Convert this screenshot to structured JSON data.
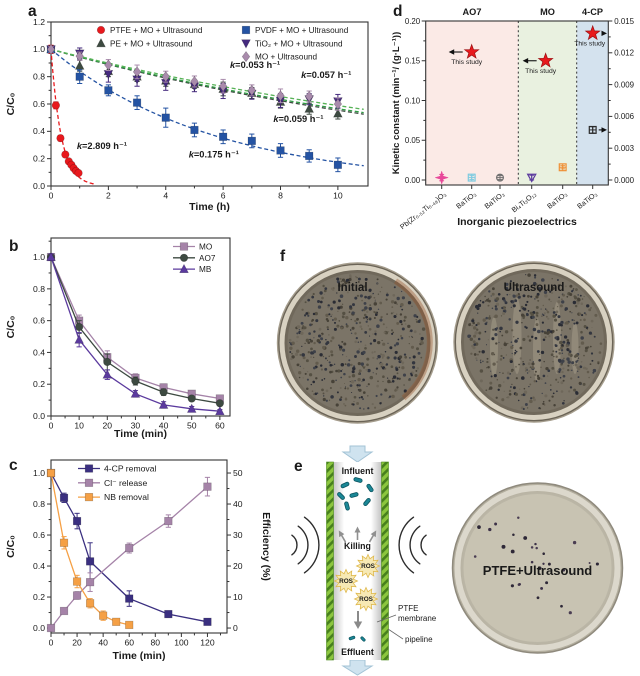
{
  "figure": {
    "background": "#ffffff",
    "panel_labels": {
      "a": "a",
      "b": "b",
      "c": "c",
      "d": "d",
      "e": "e",
      "f": "f"
    }
  },
  "chart_data": [
    {
      "id": "a",
      "type": "line",
      "xlabel": "Time (h)",
      "ylabel": "C/C₀",
      "xlim": [
        0,
        11.05
      ],
      "ylim": [
        0,
        1.2
      ],
      "xticks": {
        "values": [
          0,
          2,
          4,
          6,
          8,
          10
        ],
        "labels": [
          "0",
          "2",
          "4",
          "6",
          "8",
          "10"
        ]
      },
      "xminor": [
        1,
        3,
        5,
        7,
        9
      ],
      "yticks": {
        "values": [
          0,
          0.2,
          0.4,
          0.6,
          0.8,
          1.0,
          1.2
        ],
        "labels": [
          "0.0",
          "0.2",
          "0.4",
          "0.6",
          "0.8",
          "1.0",
          "1.2"
        ]
      },
      "yminor": [
        0.1,
        0.3,
        0.5,
        0.7,
        0.9,
        1.1
      ],
      "legend_position": "top-inside",
      "series": [
        {
          "name": "PTFE + MO + Ultrasound",
          "marker": "circle",
          "color": "#e8191d",
          "line": "dashed-fit",
          "fit_k": 2.809,
          "fit_range": [
            0,
            1.5
          ],
          "x": [
            0,
            0.17,
            0.33,
            0.5,
            0.62,
            0.71,
            0.79,
            0.87,
            0.96
          ],
          "y": [
            1.0,
            0.59,
            0.35,
            0.23,
            0.18,
            0.155,
            0.13,
            0.11,
            0.095
          ],
          "yerr": [
            0.03,
            0.025,
            0.02,
            0.018,
            0.015,
            0.012,
            0.012,
            0.01,
            0.01
          ]
        },
        {
          "name": "PE + MO + Ultrasound",
          "marker": "triangle-up",
          "color": "#3d4a41",
          "line": "dashed-fit",
          "line_color": "#3d4a41",
          "fit_k": 0.059,
          "fit_range": [
            0,
            10.9
          ],
          "x": [
            0,
            1,
            2,
            3,
            4,
            5,
            6,
            7,
            8,
            9,
            10
          ],
          "y": [
            1.0,
            0.88,
            0.84,
            0.8,
            0.77,
            0.745,
            0.71,
            0.68,
            0.615,
            0.565,
            0.53
          ],
          "yerr": [
            0.02,
            0.04,
            0.04,
            0.035,
            0.04,
            0.03,
            0.05,
            0.04,
            0.045,
            0.04,
            0.04
          ]
        },
        {
          "name": "PVDF + MO + Ultrasound",
          "marker": "square",
          "color": "#2453a3",
          "line": "dashed-fit",
          "fit_k": 0.175,
          "fit_range": [
            0,
            10.9
          ],
          "x": [
            0,
            1,
            2,
            3,
            4,
            5,
            6,
            7,
            8,
            9,
            10
          ],
          "y": [
            1.0,
            0.8,
            0.7,
            0.61,
            0.5,
            0.41,
            0.36,
            0.33,
            0.26,
            0.22,
            0.155
          ],
          "yerr": [
            0.02,
            0.05,
            0.04,
            0.05,
            0.07,
            0.05,
            0.05,
            0.05,
            0.05,
            0.045,
            0.05
          ]
        },
        {
          "name": "TiO₂ + MO + Ultrasound",
          "marker": "triangle-down",
          "color": "#452a7e",
          "line": "dashed-fit",
          "line_color": "#2f9e44",
          "fit_k": 0.057,
          "fit_range": [
            0,
            10.9
          ],
          "x": [
            0,
            1,
            2,
            3,
            4,
            5,
            6,
            7,
            8,
            9,
            10
          ],
          "y": [
            1.0,
            0.97,
            0.82,
            0.78,
            0.755,
            0.73,
            0.695,
            0.675,
            0.625,
            0.635,
            0.62
          ],
          "yerr": [
            0.02,
            0.04,
            0.06,
            0.05,
            0.055,
            0.04,
            0.055,
            0.04,
            0.05,
            0.04,
            0.05
          ]
        },
        {
          "name": "MO + Ultrasound",
          "marker": "diamond",
          "color": "#a98bac",
          "line": "dashed-fit",
          "line_color": "#57b257",
          "fit_k": 0.053,
          "fit_range": [
            0,
            10.9
          ],
          "x": [
            0,
            1,
            2,
            3,
            4,
            5,
            6,
            7,
            8,
            9,
            10
          ],
          "y": [
            1.0,
            0.95,
            0.885,
            0.835,
            0.8,
            0.765,
            0.73,
            0.7,
            0.66,
            0.655,
            0.6
          ],
          "yerr": [
            0.02,
            0.03,
            0.04,
            0.05,
            0.04,
            0.04,
            0.05,
            0.04,
            0.05,
            0.04,
            0.045
          ]
        }
      ],
      "annotations": [
        {
          "text": "k=2.809 h⁻¹",
          "x": 0.9,
          "y": 0.27,
          "color": "#e8191d"
        },
        {
          "text": "k=0.175 h⁻¹",
          "x": 4.8,
          "y": 0.21,
          "color": "#2453a3"
        },
        {
          "text": "k=0.053 h⁻¹",
          "x": 6.24,
          "y": 0.863,
          "color": "#b79ab8"
        },
        {
          "text": "k=0.057 h⁻¹",
          "x": 8.72,
          "y": 0.79,
          "color": "#452a7e"
        },
        {
          "text": "k=0.059 h⁻¹",
          "x": 7.75,
          "y": 0.47,
          "color": "#3d4a41"
        }
      ]
    },
    {
      "id": "b",
      "type": "line",
      "xlabel": "Time (min)",
      "ylabel": "C/C₀",
      "xlim": [
        0,
        63.6
      ],
      "ylim": [
        0,
        1.12
      ],
      "xticks": {
        "values": [
          0,
          10,
          20,
          30,
          40,
          50,
          60
        ],
        "labels": [
          "0",
          "10",
          "20",
          "30",
          "40",
          "50",
          "60"
        ]
      },
      "xminor": [
        5,
        15,
        25,
        35,
        45,
        55
      ],
      "yticks": {
        "values": [
          0,
          0.2,
          0.4,
          0.6,
          0.8,
          1.0
        ],
        "labels": [
          "0.0",
          "0.2",
          "0.4",
          "0.6",
          "0.8",
          "1.0"
        ]
      },
      "yminor": [
        0.1,
        0.3,
        0.5,
        0.7,
        0.9,
        1.1
      ],
      "legend_position": "top-right-inside",
      "series": [
        {
          "name": "MO",
          "marker": "square",
          "color": "#a583a8",
          "line": "solid",
          "x": [
            0,
            10,
            20,
            30,
            40,
            50,
            60
          ],
          "y": [
            1.0,
            0.6,
            0.37,
            0.24,
            0.18,
            0.14,
            0.11
          ],
          "yerr": [
            0.02,
            0.035,
            0.04,
            0.025,
            0.02,
            0.015,
            0.015
          ]
        },
        {
          "name": "AO7",
          "marker": "circle",
          "color": "#3d4a41",
          "line": "solid",
          "x": [
            0,
            10,
            20,
            30,
            40,
            50,
            60
          ],
          "y": [
            1.0,
            0.56,
            0.34,
            0.22,
            0.15,
            0.11,
            0.08
          ],
          "yerr": [
            0.02,
            0.04,
            0.05,
            0.025,
            0.02,
            0.015,
            0.015
          ]
        },
        {
          "name": "MB",
          "marker": "triangle-up",
          "color": "#5b3a9e",
          "line": "solid",
          "x": [
            0,
            10,
            20,
            30,
            40,
            50,
            60
          ],
          "y": [
            1.0,
            0.48,
            0.26,
            0.14,
            0.07,
            0.045,
            0.03
          ],
          "yerr": [
            0.02,
            0.045,
            0.03,
            0.02,
            0.02,
            0.015,
            0.01
          ]
        }
      ],
      "annotations": []
    },
    {
      "id": "c",
      "type": "line",
      "xlabel": "Time (min)",
      "ylabel": "C/C₀",
      "y2label": "Efficiency (%)",
      "y2color": "#a583a8",
      "xlim": [
        0,
        135
      ],
      "ylim": [
        -0.032,
        1.084
      ],
      "y2lim": [
        -1.6,
        54.2
      ],
      "xticks": {
        "values": [
          0,
          20,
          40,
          60,
          80,
          100,
          120
        ],
        "labels": [
          "0",
          "20",
          "40",
          "60",
          "80",
          "100",
          "120"
        ]
      },
      "xminor": [
        10,
        30,
        50,
        70,
        90,
        110,
        130
      ],
      "yticks": {
        "values": [
          0,
          0.2,
          0.4,
          0.6,
          0.8,
          1.0
        ],
        "labels": [
          "0.0",
          "0.2",
          "0.4",
          "0.6",
          "0.8",
          "1.0"
        ]
      },
      "yminor": [
        0.1,
        0.3,
        0.5,
        0.7,
        0.9
      ],
      "y2ticks": {
        "values": [
          0,
          10,
          20,
          30,
          40,
          50
        ],
        "labels": [
          "0",
          "10",
          "20",
          "30",
          "40",
          "50"
        ]
      },
      "y2minor": [
        5,
        15,
        25,
        35,
        45
      ],
      "legend_position": "top-left-inside",
      "series": [
        {
          "name": "4-CP removal",
          "marker": "square",
          "color": "#3a2f80",
          "line": "solid",
          "axis": "left",
          "x": [
            0,
            10,
            20,
            30,
            60,
            90,
            120
          ],
          "y": [
            1.0,
            0.84,
            0.69,
            0.43,
            0.19,
            0.09,
            0.04
          ],
          "yerr": [
            0.02,
            0.03,
            0.05,
            0.12,
            0.05,
            0.02,
            0.015
          ]
        },
        {
          "name": "Cl⁻ release",
          "marker": "square",
          "color": "#a583a8",
          "line": "solid",
          "axis": "right",
          "x": [
            0,
            10,
            20,
            30,
            60,
            90,
            120
          ],
          "y": [
            0,
            5.5,
            10.5,
            14.8,
            25.8,
            34.5,
            45.6
          ],
          "yerr": [
            0,
            0.8,
            1.2,
            3,
            1.6,
            2,
            3
          ]
        },
        {
          "name": "NB removal",
          "marker": "square",
          "color": "#f5a045",
          "line": "solid",
          "axis": "left",
          "x": [
            0,
            10,
            20,
            30,
            40,
            50,
            60
          ],
          "y": [
            1.0,
            0.55,
            0.3,
            0.16,
            0.08,
            0.04,
            0.02
          ],
          "yerr": [
            0.02,
            0.04,
            0.04,
            0.03,
            0.03,
            0.015,
            0.01
          ]
        }
      ],
      "annotations": []
    },
    {
      "id": "d",
      "type": "scatter",
      "xlabel": "Inorganic piezoelectrics",
      "ylabel": "Kinetic constant (min⁻¹/ (g·L⁻¹))",
      "ylim": [
        0,
        0.2
      ],
      "yticks": {
        "values": [
          0,
          0.05,
          0.1,
          0.15,
          0.2
        ],
        "labels": [
          "0.00",
          "0.05",
          "0.10",
          "0.15",
          "0.20"
        ]
      },
      "yminor": [
        0.025,
        0.075,
        0.125,
        0.175
      ],
      "y2ticks": {
        "values": [
          0,
          0.003,
          0.006,
          0.009,
          0.012,
          0.015
        ],
        "labels": [
          "0.000",
          "0.003",
          "0.006",
          "0.009",
          "0.012",
          "0.015"
        ]
      },
      "y2minor": [
        0.0015,
        0.0045,
        0.0075,
        0.0105,
        0.0135
      ],
      "right_axis_scale": 13.3333,
      "regions": [
        {
          "name": "AO7",
          "color": "#fbeae6"
        },
        {
          "name": "MO",
          "color": "#e9f1e0"
        },
        {
          "name": "4-CP",
          "color": "#d4e2ee"
        }
      ],
      "categories": [
        "Pb(Zr₀.₅₂Ti₀.₄₈)O₃",
        "BaTiO₃",
        "BaTiO₃",
        "Bi₄Ti₃O₁₂",
        "BaTiO₃",
        "BaTiO₃"
      ],
      "points": [
        {
          "cat": 0,
          "value": 0.003,
          "err": 0.004,
          "marker": "star4",
          "color": "#e8489a"
        },
        {
          "cat": 1,
          "value": 0.003,
          "err": 0.0025,
          "marker": "square-cross",
          "color": "#7ecbe0"
        },
        {
          "cat": 2,
          "value": 0.003,
          "err": 0.0025,
          "marker": "circle-cross",
          "color": "#6f6f6f"
        },
        {
          "cat": 3,
          "value": 0.003,
          "err": 0.003,
          "marker": "triangle-down-open",
          "color": "#5b3a9e"
        },
        {
          "cat": 4,
          "value": 0.016,
          "err": 0.002,
          "marker": "square-cross",
          "color": "#ef8f35"
        },
        {
          "cat": 5,
          "value": 0.063,
          "err": 0.004,
          "marker": "square-cross",
          "color": "#2b2b2b",
          "arrow": "right"
        }
      ],
      "stars": [
        {
          "x_cat": 1.0,
          "value": 0.161,
          "label": "This study",
          "arrow": "left"
        },
        {
          "x_cat": 3.45,
          "value": 0.15,
          "label": "This study",
          "arrow": "left"
        },
        {
          "x_cat": 5.0,
          "value": 0.1845,
          "label": "This study",
          "arrow": "right"
        }
      ],
      "star_color": "#e8191d"
    }
  ],
  "panel_e": {
    "influent": "Influent",
    "killing": "Killing",
    "ros": "ROS",
    "effluent": "Effluent",
    "membrane_line1": "PTFE",
    "membrane_line2": "membrane",
    "pipeline": "pipeline",
    "dish_label": "PTFE+Ultrasound",
    "dish_label_color": "#f8ee00"
  },
  "panel_f": {
    "left_dish_label": "Initial",
    "right_dish_label": "Ultrasound",
    "label_color": "#f5ec00"
  }
}
